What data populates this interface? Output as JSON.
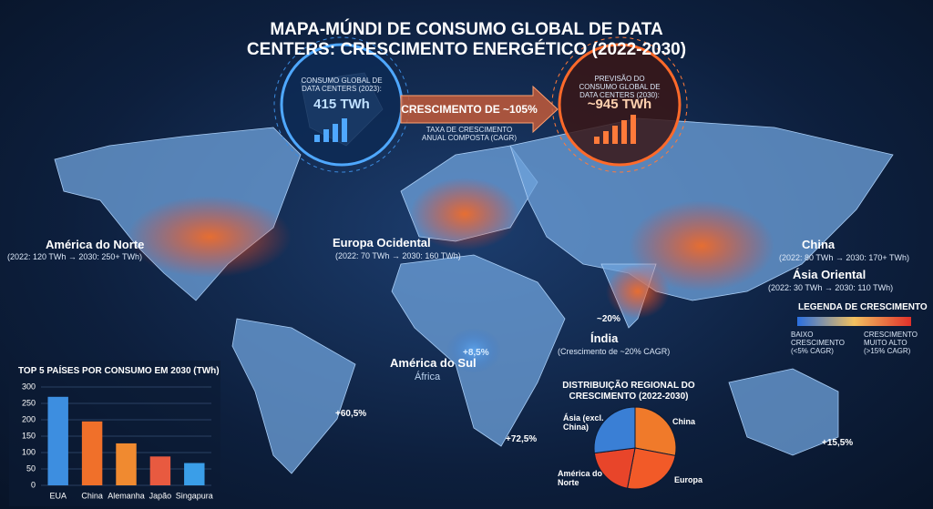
{
  "header": {
    "title": "MAPA-MÚNDI DE CONSUMO GLOBAL DE DATA CENTERS: CRESCIMENTO ENERGÉTICO (2022-2030)"
  },
  "callouts": {
    "current": {
      "label": "CONSUMO GLOBAL DE DATA CENTERS (2023):",
      "value": "415 TWh"
    },
    "growth": {
      "label": "CRESCIMENTO DE ~105%",
      "note": "TAXA DE CRESCIMENTO ANUAL COMPOSTA (CAGR)"
    },
    "forecast": {
      "label": "PREVISÃO DO CONSUMO GLOBAL DE DATA CENTERS (2030):",
      "value": "~945 TWh"
    }
  },
  "regions": [
    {
      "name": "América do Norte",
      "detail": "(2022: 120 TWh → 2030: 250+ TWh)"
    },
    {
      "name": "Europa Ocidental",
      "detail": "(2022: 70 TWh → 2030: 160 TWh)"
    },
    {
      "name": "China",
      "detail": "(2022: 80 TWh → 2030: 170+ TWh)"
    },
    {
      "name": "Ásia Oriental",
      "detail": "(2022: 30 TWh → 2030: 110 TWh)"
    }
  ],
  "map_labels": {
    "india_rate": "~20%",
    "india": "Índia",
    "india_detail": "(Crescimento de ~20% CAGR)",
    "south_america": "América do Sul",
    "africa": "África",
    "rates": [
      "+8,5%",
      "+60,5%",
      "+72,5%",
      "+15,5%"
    ]
  },
  "legend": {
    "title": "LEGENDA DE CRESCIMENTO",
    "low": "BAIXO CRESCIMENTO (<5% CAGR)",
    "high": "CRESCIMENTO MUITO ALTO (>15% CAGR)"
  },
  "chart_data": [
    {
      "type": "bar",
      "title": "TOP 5 PAÍSES POR CONSUMO EM 2030 (TWh)",
      "categories": [
        "EUA",
        "China",
        "Alemanha",
        "Japão",
        "Singapura"
      ],
      "values": [
        270,
        195,
        128,
        88,
        68
      ],
      "colors": [
        "#3d8ee0",
        "#f0702a",
        "#f08a30",
        "#e85a40",
        "#3a9ee8"
      ],
      "ylim": [
        0,
        300
      ],
      "yticks": [
        0,
        50,
        100,
        150,
        200,
        250,
        300
      ],
      "grid": true
    },
    {
      "type": "pie",
      "title": "DISTRIBUIÇÃO REGIONAL DO CRESCIMENTO (2022-2030)",
      "categories": [
        "China",
        "Europa",
        "América do Norte",
        "Ásia (excl. China)"
      ],
      "values": [
        28,
        25,
        20,
        27
      ],
      "colors": [
        "#f07a2a",
        "#f25a28",
        "#e8452a",
        "#3a7fd5"
      ]
    }
  ]
}
